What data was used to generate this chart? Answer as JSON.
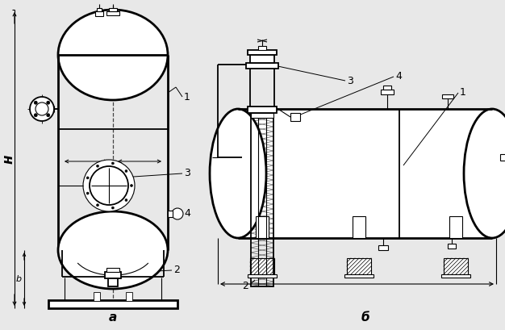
{
  "bg_color": "#e8e8e8",
  "line_color": "#000000",
  "label_a": "а",
  "label_b": "б",
  "label_H": "н",
  "label_h": "b",
  "labels": [
    "1",
    "2",
    "3",
    "4"
  ]
}
